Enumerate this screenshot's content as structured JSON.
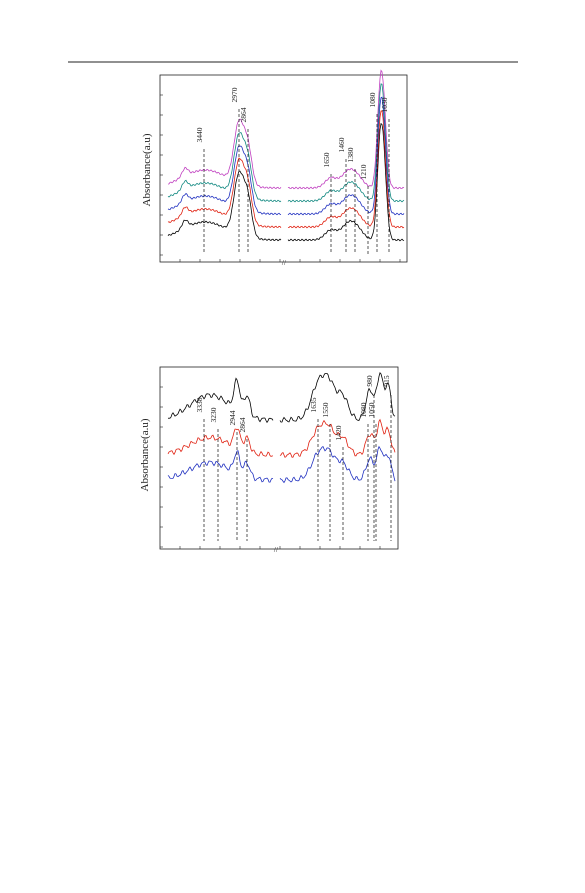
{
  "figures": [
    {
      "y_label": "Absorbance(a.u)",
      "peaks": [
        "3440",
        "2970",
        "2864",
        "1650",
        "1460",
        "1380",
        "1210",
        "1080",
        "1030"
      ]
    },
    {
      "y_label": "Absorbance(a.u)",
      "peaks": [
        "3338",
        "3230",
        "2944",
        "2864",
        "1635",
        "1550",
        "1420",
        "1080",
        "1050",
        "980",
        "915"
      ]
    }
  ]
}
